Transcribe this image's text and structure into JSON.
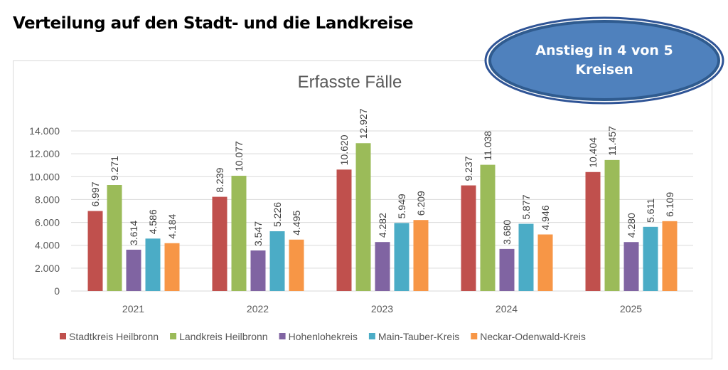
{
  "heading": "Verteilung auf den Stadt- und die Landkreise",
  "callout": {
    "line1": "Anstieg in 4 von 5",
    "line2": "Kreisen",
    "color": "#4f81bd"
  },
  "chart_data": {
    "type": "bar",
    "title": "Erfasste Fälle",
    "categories": [
      "2021",
      "2022",
      "2023",
      "2024",
      "2025"
    ],
    "series": [
      {
        "name": "Stadtkreis Heilbronn",
        "color": "#c0504d",
        "values": [
          6997,
          8239,
          10620,
          9237,
          10404
        ],
        "labels": [
          "6.997",
          "8.239",
          "10.620",
          "9.237",
          "10.404"
        ]
      },
      {
        "name": "Landkreis Heilbronn",
        "color": "#9bbb59",
        "values": [
          9271,
          10077,
          12927,
          11038,
          11457
        ],
        "labels": [
          "9.271",
          "10.077",
          "12.927",
          "11.038",
          "11.457"
        ]
      },
      {
        "name": "Hohenlohekreis",
        "color": "#8064a2",
        "values": [
          3614,
          3547,
          4282,
          3680,
          4280
        ],
        "labels": [
          "3.614",
          "3.547",
          "4.282",
          "3.680",
          "4.280"
        ]
      },
      {
        "name": "Main-Tauber-Kreis",
        "color": "#4bacc6",
        "values": [
          4586,
          5226,
          5949,
          5877,
          5611
        ],
        "labels": [
          "4.586",
          "5.226",
          "5.949",
          "5.877",
          "5.611"
        ]
      },
      {
        "name": "Neckar-Odenwald-Kreis",
        "color": "#f79646",
        "values": [
          4184,
          4495,
          6209,
          4946,
          6109
        ],
        "labels": [
          "4.184",
          "4.495",
          "6.209",
          "4.946",
          "6.109"
        ]
      }
    ],
    "ylim": [
      0,
      14000
    ],
    "yticks": [
      "0",
      "2.000",
      "4.000",
      "6.000",
      "8.000",
      "10.000",
      "12.000",
      "14.000"
    ],
    "grid": true,
    "legend": "bottom"
  }
}
